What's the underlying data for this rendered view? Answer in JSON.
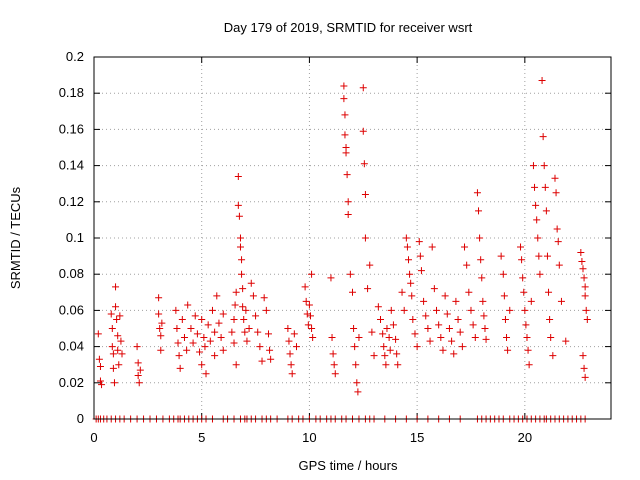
{
  "chart_data": {
    "type": "scatter",
    "title": "Day 179 of 2019, SRMTID for receiver wsrt",
    "xlabel": "GPS time / hours",
    "ylabel": "SRMTID / TECUs",
    "xlim": [
      0,
      24
    ],
    "ylim": [
      0,
      0.2
    ],
    "x_ticks": [
      0,
      5,
      10,
      15,
      20
    ],
    "x_tick_labels": [
      "0",
      "5",
      "10",
      "15",
      "20"
    ],
    "y_ticks": [
      0,
      0.02,
      0.04,
      0.06,
      0.08,
      0.1,
      0.12,
      0.14,
      0.16,
      0.18,
      0.2
    ],
    "y_tick_labels": [
      "0",
      "0.02",
      "0.04",
      "0.06",
      "0.08",
      "0.1",
      "0.12",
      "0.14",
      "0.16",
      "0.18",
      "0.2"
    ],
    "grid": true,
    "marker": "+",
    "color": "#dd0000",
    "series": [
      {
        "name": "SRMTID",
        "points": [
          [
            0.2,
            0.047
          ],
          [
            0.25,
            0.033
          ],
          [
            0.3,
            0.029
          ],
          [
            0.3,
            0.021
          ],
          [
            0.35,
            0.019
          ],
          [
            0.8,
            0.058
          ],
          [
            0.85,
            0.05
          ],
          [
            0.85,
            0.04
          ],
          [
            0.9,
            0.036
          ],
          [
            0.9,
            0.028
          ],
          [
            0.95,
            0.02
          ],
          [
            1.0,
            0.073
          ],
          [
            1.0,
            0.062
          ],
          [
            1.05,
            0.055
          ],
          [
            1.1,
            0.046
          ],
          [
            1.1,
            0.038
          ],
          [
            1.15,
            0.03
          ],
          [
            1.2,
            0.057
          ],
          [
            1.25,
            0.043
          ],
          [
            1.3,
            0.036
          ],
          [
            2.0,
            0.04
          ],
          [
            2.05,
            0.031
          ],
          [
            2.05,
            0.024
          ],
          [
            2.1,
            0.02
          ],
          [
            2.15,
            0.027
          ],
          [
            3.0,
            0.067
          ],
          [
            3.0,
            0.058
          ],
          [
            3.05,
            0.05
          ],
          [
            3.1,
            0.046
          ],
          [
            3.1,
            0.038
          ],
          [
            3.15,
            0.053
          ],
          [
            3.8,
            0.06
          ],
          [
            3.85,
            0.05
          ],
          [
            3.9,
            0.042
          ],
          [
            3.95,
            0.035
          ],
          [
            4.0,
            0.028
          ],
          [
            4.1,
            0.055
          ],
          [
            4.2,
            0.045
          ],
          [
            4.3,
            0.038
          ],
          [
            4.35,
            0.063
          ],
          [
            4.5,
            0.05
          ],
          [
            4.6,
            0.042
          ],
          [
            4.7,
            0.057
          ],
          [
            4.8,
            0.047
          ],
          [
            4.9,
            0.037
          ],
          [
            5.0,
            0.03
          ],
          [
            5.0,
            0.055
          ],
          [
            5.1,
            0.045
          ],
          [
            5.15,
            0.04
          ],
          [
            5.2,
            0.025
          ],
          [
            5.3,
            0.052
          ],
          [
            5.4,
            0.043
          ],
          [
            5.5,
            0.06
          ],
          [
            5.6,
            0.048
          ],
          [
            5.6,
            0.035
          ],
          [
            5.7,
            0.068
          ],
          [
            5.8,
            0.053
          ],
          [
            5.9,
            0.045
          ],
          [
            6.0,
            0.058
          ],
          [
            6.0,
            0.038
          ],
          [
            6.4,
            0.048
          ],
          [
            6.5,
            0.055
          ],
          [
            6.5,
            0.042
          ],
          [
            6.55,
            0.063
          ],
          [
            6.6,
            0.07
          ],
          [
            6.6,
            0.03
          ],
          [
            6.7,
            0.134
          ],
          [
            6.7,
            0.118
          ],
          [
            6.75,
            0.112
          ],
          [
            6.8,
            0.1
          ],
          [
            6.8,
            0.095
          ],
          [
            6.85,
            0.088
          ],
          [
            6.85,
            0.08
          ],
          [
            6.9,
            0.072
          ],
          [
            6.9,
            0.062
          ],
          [
            6.95,
            0.055
          ],
          [
            7.0,
            0.048
          ],
          [
            7.05,
            0.06
          ],
          [
            7.1,
            0.043
          ],
          [
            7.2,
            0.05
          ],
          [
            7.3,
            0.075
          ],
          [
            7.4,
            0.068
          ],
          [
            7.5,
            0.057
          ],
          [
            7.6,
            0.048
          ],
          [
            7.7,
            0.04
          ],
          [
            7.8,
            0.032
          ],
          [
            7.9,
            0.067
          ],
          [
            8.0,
            0.06
          ],
          [
            8.1,
            0.047
          ],
          [
            8.15,
            0.038
          ],
          [
            8.2,
            0.033
          ],
          [
            9.0,
            0.05
          ],
          [
            9.05,
            0.043
          ],
          [
            9.1,
            0.036
          ],
          [
            9.15,
            0.03
          ],
          [
            9.2,
            0.025
          ],
          [
            9.3,
            0.047
          ],
          [
            9.4,
            0.04
          ],
          [
            9.8,
            0.073
          ],
          [
            9.85,
            0.065
          ],
          [
            9.9,
            0.058
          ],
          [
            9.95,
            0.052
          ],
          [
            10.0,
            0.063
          ],
          [
            10.05,
            0.057
          ],
          [
            10.1,
            0.08
          ],
          [
            10.1,
            0.05
          ],
          [
            10.15,
            0.045
          ],
          [
            11.0,
            0.078
          ],
          [
            11.05,
            0.045
          ],
          [
            11.1,
            0.036
          ],
          [
            11.15,
            0.03
          ],
          [
            11.2,
            0.025
          ],
          [
            11.6,
            0.184
          ],
          [
            11.6,
            0.177
          ],
          [
            11.65,
            0.168
          ],
          [
            11.65,
            0.157
          ],
          [
            11.7,
            0.15
          ],
          [
            11.7,
            0.147
          ],
          [
            11.75,
            0.135
          ],
          [
            11.8,
            0.12
          ],
          [
            11.8,
            0.113
          ],
          [
            11.9,
            0.08
          ],
          [
            12.0,
            0.07
          ],
          [
            12.05,
            0.05
          ],
          [
            12.1,
            0.04
          ],
          [
            12.15,
            0.03
          ],
          [
            12.2,
            0.02
          ],
          [
            12.25,
            0.015
          ],
          [
            12.3,
            0.045
          ],
          [
            12.5,
            0.183
          ],
          [
            12.5,
            0.159
          ],
          [
            12.55,
            0.141
          ],
          [
            12.6,
            0.124
          ],
          [
            12.6,
            0.1
          ],
          [
            12.7,
            0.072
          ],
          [
            12.8,
            0.085
          ],
          [
            12.9,
            0.048
          ],
          [
            13.0,
            0.035
          ],
          [
            13.2,
            0.062
          ],
          [
            13.3,
            0.055
          ],
          [
            13.4,
            0.047
          ],
          [
            13.45,
            0.04
          ],
          [
            13.5,
            0.035
          ],
          [
            13.55,
            0.03
          ],
          [
            13.6,
            0.05
          ],
          [
            13.7,
            0.045
          ],
          [
            13.75,
            0.038
          ],
          [
            13.8,
            0.06
          ],
          [
            13.9,
            0.052
          ],
          [
            14.0,
            0.044
          ],
          [
            14.05,
            0.036
          ],
          [
            14.1,
            0.03
          ],
          [
            14.3,
            0.07
          ],
          [
            14.4,
            0.06
          ],
          [
            14.5,
            0.1
          ],
          [
            14.55,
            0.095
          ],
          [
            14.6,
            0.088
          ],
          [
            14.65,
            0.08
          ],
          [
            14.7,
            0.075
          ],
          [
            14.75,
            0.068
          ],
          [
            14.8,
            0.055
          ],
          [
            14.9,
            0.047
          ],
          [
            15.0,
            0.04
          ],
          [
            15.1,
            0.098
          ],
          [
            15.15,
            0.09
          ],
          [
            15.2,
            0.082
          ],
          [
            15.3,
            0.065
          ],
          [
            15.4,
            0.057
          ],
          [
            15.5,
            0.05
          ],
          [
            15.6,
            0.043
          ],
          [
            15.7,
            0.095
          ],
          [
            15.8,
            0.072
          ],
          [
            15.9,
            0.06
          ],
          [
            16.0,
            0.052
          ],
          [
            16.1,
            0.045
          ],
          [
            16.2,
            0.038
          ],
          [
            16.3,
            0.068
          ],
          [
            16.4,
            0.058
          ],
          [
            16.5,
            0.05
          ],
          [
            16.6,
            0.043
          ],
          [
            16.7,
            0.036
          ],
          [
            16.8,
            0.065
          ],
          [
            16.9,
            0.055
          ],
          [
            17.0,
            0.048
          ],
          [
            17.1,
            0.04
          ],
          [
            17.2,
            0.095
          ],
          [
            17.3,
            0.085
          ],
          [
            17.4,
            0.07
          ],
          [
            17.5,
            0.06
          ],
          [
            17.6,
            0.052
          ],
          [
            17.7,
            0.045
          ],
          [
            17.8,
            0.125
          ],
          [
            17.85,
            0.115
          ],
          [
            17.9,
            0.1
          ],
          [
            17.95,
            0.088
          ],
          [
            18.0,
            0.078
          ],
          [
            18.05,
            0.065
          ],
          [
            18.1,
            0.057
          ],
          [
            18.15,
            0.05
          ],
          [
            18.2,
            0.044
          ],
          [
            18.9,
            0.09
          ],
          [
            19.0,
            0.08
          ],
          [
            19.05,
            0.068
          ],
          [
            19.1,
            0.055
          ],
          [
            19.15,
            0.045
          ],
          [
            19.2,
            0.038
          ],
          [
            19.3,
            0.06
          ],
          [
            19.8,
            0.095
          ],
          [
            19.85,
            0.088
          ],
          [
            19.9,
            0.078
          ],
          [
            19.95,
            0.07
          ],
          [
            20.0,
            0.06
          ],
          [
            20.05,
            0.052
          ],
          [
            20.1,
            0.045
          ],
          [
            20.15,
            0.038
          ],
          [
            20.2,
            0.03
          ],
          [
            20.3,
            0.065
          ],
          [
            20.4,
            0.14
          ],
          [
            20.45,
            0.128
          ],
          [
            20.5,
            0.118
          ],
          [
            20.55,
            0.11
          ],
          [
            20.6,
            0.1
          ],
          [
            20.65,
            0.09
          ],
          [
            20.7,
            0.08
          ],
          [
            20.8,
            0.187
          ],
          [
            20.85,
            0.156
          ],
          [
            20.9,
            0.14
          ],
          [
            20.95,
            0.128
          ],
          [
            21.0,
            0.115
          ],
          [
            21.05,
            0.09
          ],
          [
            21.1,
            0.07
          ],
          [
            21.15,
            0.055
          ],
          [
            21.2,
            0.045
          ],
          [
            21.3,
            0.035
          ],
          [
            21.4,
            0.133
          ],
          [
            21.45,
            0.125
          ],
          [
            21.5,
            0.105
          ],
          [
            21.55,
            0.098
          ],
          [
            21.6,
            0.085
          ],
          [
            21.7,
            0.065
          ],
          [
            21.9,
            0.043
          ],
          [
            22.6,
            0.092
          ],
          [
            22.65,
            0.087
          ],
          [
            22.7,
            0.083
          ],
          [
            22.75,
            0.078
          ],
          [
            22.8,
            0.073
          ],
          [
            22.8,
            0.068
          ],
          [
            22.85,
            0.06
          ],
          [
            22.9,
            0.055
          ],
          [
            22.7,
            0.035
          ],
          [
            22.75,
            0.028
          ],
          [
            22.8,
            0.023
          ]
        ],
        "zero_points": [
          0.1,
          0.2,
          0.3,
          0.45,
          0.6,
          0.8,
          1.0,
          1.2,
          1.4,
          1.7,
          2.0,
          2.3,
          2.6,
          2.9,
          3.2,
          3.5,
          3.7,
          3.9,
          4.0,
          4.2,
          4.4,
          4.6,
          4.8,
          5.0,
          5.2,
          5.5,
          6.0,
          6.2,
          6.5,
          6.8,
          7.0,
          7.1,
          7.3,
          7.5,
          7.8,
          8.0,
          8.2,
          8.5,
          9.0,
          9.2,
          9.5,
          9.7,
          10.0,
          10.3,
          10.5,
          10.8,
          11.0,
          11.2,
          11.5,
          11.7,
          12.0,
          12.3,
          12.6,
          12.8,
          13.0,
          13.5,
          14.0,
          14.5,
          15.0,
          15.5,
          16.0,
          16.5,
          17.0,
          17.8,
          18.0,
          18.2,
          18.4,
          18.6,
          18.8,
          19.0,
          19.3,
          19.5,
          19.7,
          19.9,
          20.1,
          20.3,
          20.5,
          20.7,
          20.9,
          21.0,
          21.2,
          21.4,
          21.6,
          21.8,
          22.0,
          22.2,
          22.4,
          22.6,
          22.8
        ]
      }
    ]
  }
}
